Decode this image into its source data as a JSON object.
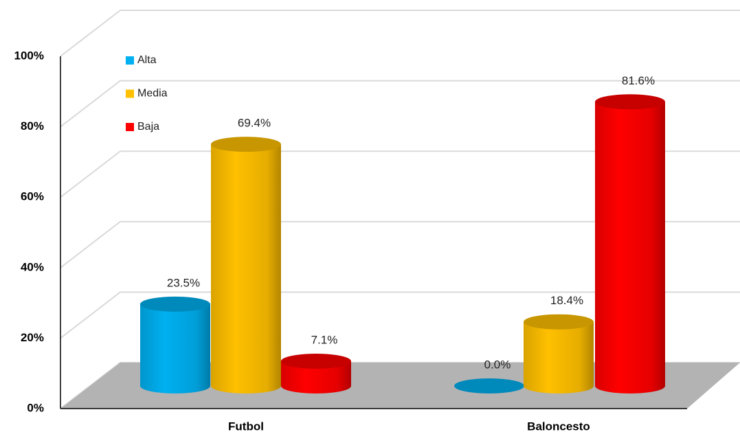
{
  "chart_data": {
    "type": "bar3d",
    "categories": [
      "Futbol",
      "Baloncesto"
    ],
    "series": [
      {
        "name": "Alta",
        "color": "#00b0f0",
        "values": [
          23.5,
          0.0
        ],
        "value_labels": [
          "23.5%",
          "0.0%"
        ]
      },
      {
        "name": "Media",
        "color": "#ffc000",
        "values": [
          69.4,
          18.4
        ],
        "value_labels": [
          "69.4%",
          "18.4%"
        ]
      },
      {
        "name": "Baja",
        "color": "#ff0000",
        "values": [
          7.1,
          81.6
        ],
        "value_labels": [
          "7.1%",
          "81.6%"
        ]
      }
    ],
    "ylim": [
      0,
      100
    ],
    "yticks": [
      {
        "value": 0,
        "label": "0%"
      },
      {
        "value": 20,
        "label": "20%"
      },
      {
        "value": 40,
        "label": "40%"
      },
      {
        "value": 60,
        "label": "60%"
      },
      {
        "value": 80,
        "label": "80%"
      },
      {
        "value": 100,
        "label": "100%"
      }
    ],
    "grid": true,
    "legend": "top-left"
  }
}
